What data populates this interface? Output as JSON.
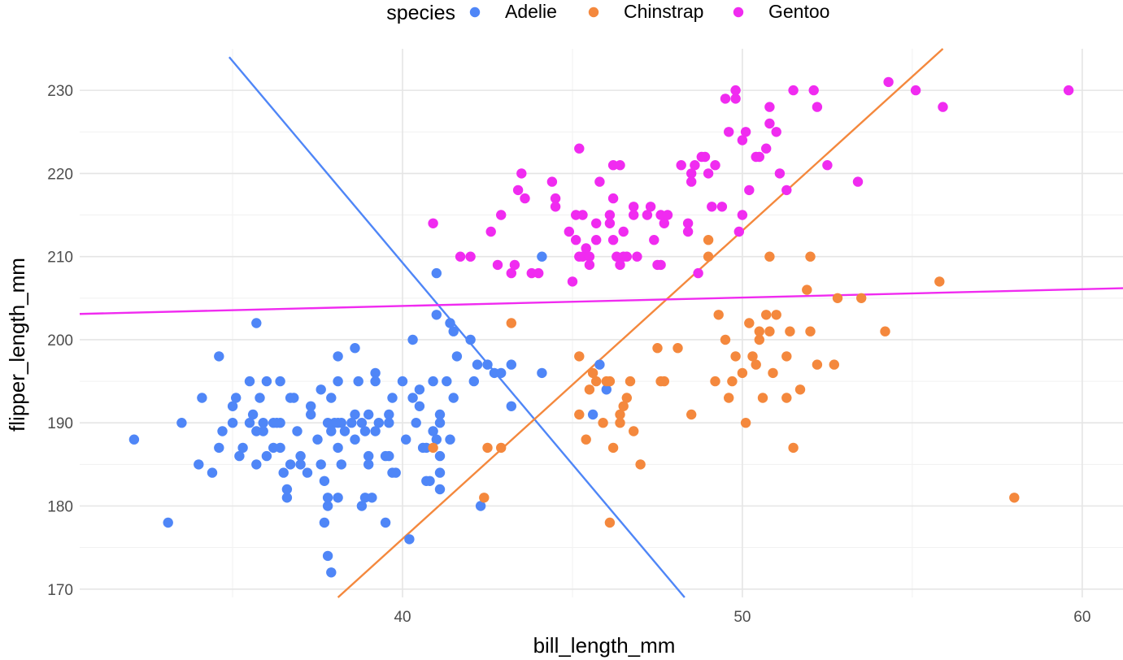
{
  "chart_data": {
    "type": "scatter",
    "xlabel": "bill_length_mm",
    "ylabel": "flipper_length_mm",
    "legend": {
      "title": "species",
      "position": "top"
    },
    "grid": true,
    "xlim": [
      30.5,
      61.2
    ],
    "ylim": [
      169,
      235
    ],
    "xticks": [
      40,
      50,
      60
    ],
    "yticks": [
      170,
      180,
      190,
      200,
      210,
      220,
      230
    ],
    "series": [
      {
        "name": "Adelie",
        "color": "#4F86F7",
        "points": [
          [
            32.1,
            188
          ],
          [
            33.1,
            178
          ],
          [
            33.5,
            190
          ],
          [
            34.0,
            185
          ],
          [
            34.1,
            193
          ],
          [
            34.4,
            184
          ],
          [
            34.6,
            187
          ],
          [
            34.6,
            198
          ],
          [
            34.7,
            189
          ],
          [
            35.0,
            190
          ],
          [
            35.1,
            193
          ],
          [
            35.0,
            192
          ],
          [
            35.2,
            186
          ],
          [
            35.3,
            187
          ],
          [
            35.5,
            190
          ],
          [
            35.5,
            195
          ],
          [
            35.6,
            191
          ],
          [
            35.7,
            185
          ],
          [
            35.7,
            189
          ],
          [
            35.7,
            202
          ],
          [
            35.9,
            189
          ],
          [
            35.9,
            190
          ],
          [
            36.0,
            195
          ],
          [
            36.0,
            186
          ],
          [
            36.2,
            187
          ],
          [
            36.2,
            190
          ],
          [
            36.4,
            190
          ],
          [
            36.4,
            187
          ],
          [
            36.5,
            184
          ],
          [
            36.6,
            182
          ],
          [
            36.6,
            181
          ],
          [
            36.7,
            185
          ],
          [
            36.7,
            193
          ],
          [
            36.8,
            193
          ],
          [
            36.9,
            189
          ],
          [
            37.0,
            185
          ],
          [
            37.2,
            184
          ],
          [
            37.3,
            192
          ],
          [
            37.3,
            191
          ],
          [
            37.6,
            194
          ],
          [
            37.6,
            185
          ],
          [
            37.7,
            178
          ],
          [
            37.7,
            183
          ],
          [
            37.8,
            181
          ],
          [
            37.8,
            174
          ],
          [
            37.8,
            180
          ],
          [
            37.9,
            172
          ],
          [
            37.9,
            193
          ],
          [
            38.0,
            190
          ],
          [
            38.1,
            190
          ],
          [
            38.1,
            181
          ],
          [
            38.1,
            198
          ],
          [
            38.1,
            187
          ],
          [
            38.2,
            185
          ],
          [
            38.2,
            190
          ],
          [
            38.3,
            189
          ],
          [
            38.5,
            190
          ],
          [
            38.6,
            188
          ],
          [
            38.6,
            199
          ],
          [
            38.6,
            191
          ],
          [
            38.7,
            195
          ],
          [
            38.8,
            180
          ],
          [
            38.8,
            190
          ],
          [
            38.9,
            181
          ],
          [
            39.0,
            186
          ],
          [
            39.0,
            191
          ],
          [
            39.0,
            185
          ],
          [
            39.1,
            181
          ],
          [
            39.2,
            196
          ],
          [
            39.2,
            195
          ],
          [
            39.3,
            190
          ],
          [
            39.5,
            178
          ],
          [
            39.5,
            186
          ],
          [
            39.6,
            190
          ],
          [
            39.6,
            186
          ],
          [
            39.6,
            191
          ],
          [
            39.7,
            184
          ],
          [
            39.8,
            184
          ],
          [
            40.1,
            188
          ],
          [
            40.2,
            176
          ],
          [
            40.3,
            193
          ],
          [
            40.3,
            200
          ],
          [
            40.5,
            194
          ],
          [
            40.6,
            187
          ],
          [
            40.7,
            187
          ],
          [
            40.8,
            183
          ],
          [
            40.9,
            195
          ],
          [
            41.0,
            203
          ],
          [
            41.0,
            208
          ],
          [
            41.1,
            190
          ],
          [
            41.1,
            191
          ],
          [
            41.1,
            182
          ],
          [
            41.3,
            195
          ],
          [
            41.4,
            202
          ],
          [
            41.5,
            201
          ],
          [
            41.6,
            198
          ],
          [
            42.0,
            200
          ],
          [
            42.2,
            197
          ],
          [
            42.3,
            180
          ],
          [
            42.5,
            197
          ],
          [
            42.7,
            196
          ],
          [
            42.9,
            196
          ],
          [
            43.2,
            197
          ],
          [
            43.2,
            192
          ],
          [
            44.1,
            196
          ],
          [
            44.1,
            210
          ],
          [
            45.6,
            191
          ],
          [
            45.8,
            197
          ],
          [
            46.0,
            194
          ],
          [
            40.9,
            189
          ],
          [
            41.1,
            184
          ],
          [
            41.1,
            186
          ],
          [
            41.4,
            188
          ],
          [
            40.0,
            195
          ],
          [
            40.4,
            190
          ],
          [
            41.0,
            188
          ],
          [
            41.5,
            193
          ],
          [
            36.3,
            190
          ],
          [
            36.4,
            195
          ],
          [
            37.0,
            186
          ],
          [
            37.5,
            188
          ],
          [
            37.8,
            190
          ],
          [
            38.1,
            195
          ],
          [
            38.9,
            189
          ],
          [
            39.2,
            189
          ],
          [
            39.7,
            193
          ],
          [
            40.5,
            192
          ],
          [
            40.7,
            183
          ],
          [
            42.1,
            195
          ],
          [
            35.8,
            193
          ],
          [
            37.9,
            189
          ]
        ]
      },
      {
        "name": "Chinstrap",
        "color": "#F4883D",
        "points": [
          [
            40.9,
            187
          ],
          [
            42.4,
            181
          ],
          [
            42.5,
            187
          ],
          [
            42.9,
            187
          ],
          [
            43.2,
            202
          ],
          [
            45.2,
            191
          ],
          [
            45.2,
            198
          ],
          [
            45.4,
            188
          ],
          [
            45.5,
            194
          ],
          [
            45.6,
            196
          ],
          [
            45.7,
            195
          ],
          [
            45.9,
            190
          ],
          [
            46.0,
            195
          ],
          [
            46.1,
            178
          ],
          [
            46.2,
            187
          ],
          [
            46.4,
            190
          ],
          [
            46.4,
            191
          ],
          [
            46.5,
            192
          ],
          [
            46.6,
            193
          ],
          [
            46.7,
            195
          ],
          [
            46.8,
            189
          ],
          [
            47.0,
            185
          ],
          [
            47.5,
            199
          ],
          [
            47.6,
            195
          ],
          [
            48.1,
            199
          ],
          [
            48.5,
            191
          ],
          [
            49.0,
            210
          ],
          [
            49.0,
            212
          ],
          [
            49.2,
            195
          ],
          [
            49.3,
            203
          ],
          [
            49.5,
            200
          ],
          [
            49.6,
            193
          ],
          [
            49.7,
            195
          ],
          [
            49.8,
            198
          ],
          [
            50.0,
            196
          ],
          [
            50.1,
            190
          ],
          [
            50.2,
            202
          ],
          [
            50.3,
            198
          ],
          [
            50.4,
            197
          ],
          [
            50.5,
            200
          ],
          [
            50.5,
            201
          ],
          [
            50.6,
            193
          ],
          [
            50.7,
            203
          ],
          [
            50.8,
            210
          ],
          [
            50.8,
            201
          ],
          [
            50.9,
            196
          ],
          [
            51.0,
            203
          ],
          [
            51.3,
            193
          ],
          [
            51.3,
            198
          ],
          [
            51.4,
            201
          ],
          [
            51.5,
            187
          ],
          [
            51.7,
            194
          ],
          [
            51.9,
            206
          ],
          [
            52.0,
            201
          ],
          [
            52.0,
            210
          ],
          [
            52.2,
            197
          ],
          [
            52.7,
            197
          ],
          [
            52.8,
            205
          ],
          [
            53.5,
            205
          ],
          [
            54.2,
            201
          ],
          [
            55.8,
            207
          ],
          [
            58.0,
            181
          ],
          [
            46.1,
            195
          ],
          [
            47.7,
            195
          ]
        ]
      },
      {
        "name": "Gentoo",
        "color": "#F02BF0",
        "points": [
          [
            40.9,
            214
          ],
          [
            41.7,
            210
          ],
          [
            42.0,
            210
          ],
          [
            42.6,
            213
          ],
          [
            42.8,
            209
          ],
          [
            42.9,
            215
          ],
          [
            43.2,
            208
          ],
          [
            43.3,
            209
          ],
          [
            43.4,
            218
          ],
          [
            43.5,
            220
          ],
          [
            43.6,
            217
          ],
          [
            43.8,
            208
          ],
          [
            44.0,
            208
          ],
          [
            44.4,
            219
          ],
          [
            44.5,
            217
          ],
          [
            44.5,
            216
          ],
          [
            44.9,
            213
          ],
          [
            45.0,
            207
          ],
          [
            45.1,
            215
          ],
          [
            45.1,
            212
          ],
          [
            45.2,
            210
          ],
          [
            45.2,
            223
          ],
          [
            45.3,
            210
          ],
          [
            45.4,
            211
          ],
          [
            45.5,
            209
          ],
          [
            45.5,
            210
          ],
          [
            45.7,
            214
          ],
          [
            45.7,
            212
          ],
          [
            45.8,
            219
          ],
          [
            46.1,
            215
          ],
          [
            46.1,
            214
          ],
          [
            46.2,
            221
          ],
          [
            46.2,
            217
          ],
          [
            46.2,
            212
          ],
          [
            46.3,
            210
          ],
          [
            46.4,
            221
          ],
          [
            46.5,
            210
          ],
          [
            46.5,
            213
          ],
          [
            46.6,
            210
          ],
          [
            46.8,
            216
          ],
          [
            46.8,
            215
          ],
          [
            46.9,
            210
          ],
          [
            47.2,
            215
          ],
          [
            47.3,
            216
          ],
          [
            47.4,
            212
          ],
          [
            47.5,
            209
          ],
          [
            47.6,
            215
          ],
          [
            47.7,
            214
          ],
          [
            47.8,
            215
          ],
          [
            48.2,
            221
          ],
          [
            48.4,
            214
          ],
          [
            48.4,
            213
          ],
          [
            48.5,
            220
          ],
          [
            48.6,
            221
          ],
          [
            48.7,
            208
          ],
          [
            48.8,
            222
          ],
          [
            48.9,
            222
          ],
          [
            49.1,
            216
          ],
          [
            49.2,
            221
          ],
          [
            49.4,
            216
          ],
          [
            49.5,
            229
          ],
          [
            49.6,
            225
          ],
          [
            49.8,
            229
          ],
          [
            49.8,
            230
          ],
          [
            49.9,
            213
          ],
          [
            50.0,
            224
          ],
          [
            50.1,
            225
          ],
          [
            50.2,
            218
          ],
          [
            50.4,
            222
          ],
          [
            50.5,
            222
          ],
          [
            50.7,
            223
          ],
          [
            50.8,
            228
          ],
          [
            51.1,
            220
          ],
          [
            51.3,
            218
          ],
          [
            51.5,
            230
          ],
          [
            52.1,
            230
          ],
          [
            52.2,
            228
          ],
          [
            52.5,
            221
          ],
          [
            53.4,
            219
          ],
          [
            54.3,
            231
          ],
          [
            55.1,
            230
          ],
          [
            55.9,
            228
          ],
          [
            59.6,
            230
          ],
          [
            48.5,
            219
          ],
          [
            49.0,
            220
          ],
          [
            50.0,
            215
          ],
          [
            50.8,
            226
          ],
          [
            51.0,
            225
          ],
          [
            46.4,
            209
          ],
          [
            45.3,
            215
          ],
          [
            47.6,
            209
          ]
        ]
      }
    ],
    "lines": [
      {
        "name": "Adelie",
        "x": [
          34.9,
          48.3
        ],
        "y": [
          234,
          169
        ]
      },
      {
        "name": "Chinstrap",
        "x": [
          38.1,
          55.9
        ],
        "y": [
          169,
          235
        ]
      },
      {
        "name": "Gentoo",
        "x": [
          30.5,
          61.2
        ],
        "y": [
          203.1,
          206.2
        ]
      }
    ]
  }
}
